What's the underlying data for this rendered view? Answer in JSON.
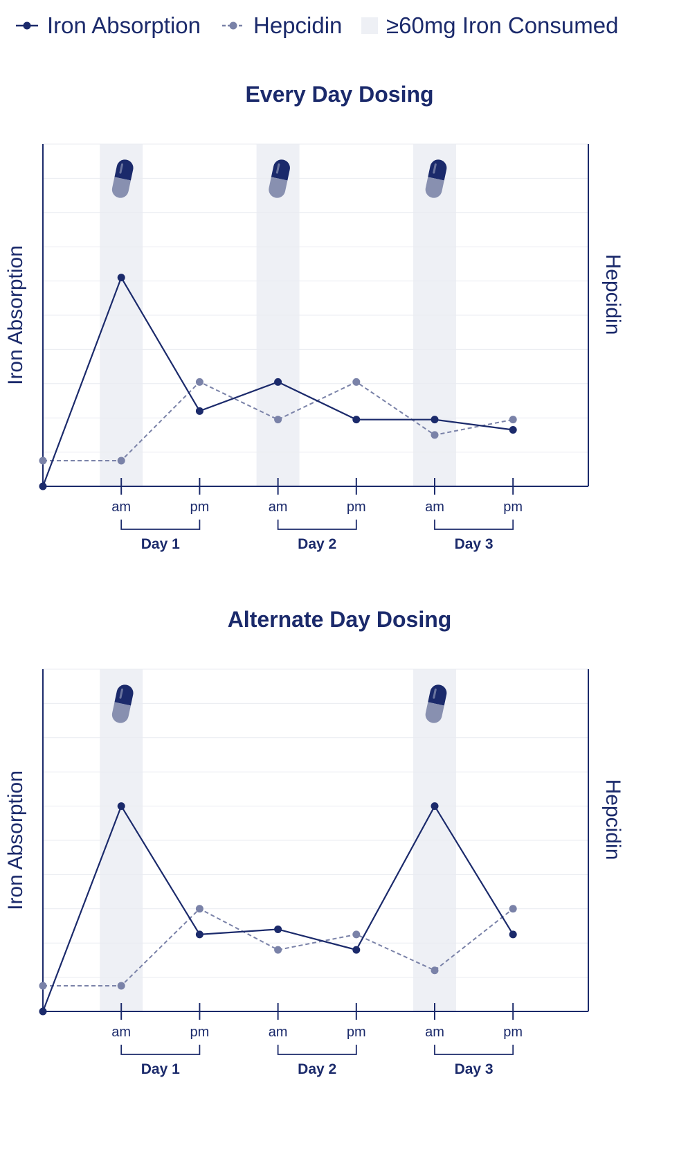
{
  "legend": {
    "iron_label": "Iron Absorption",
    "hepcidin_label": "Hepcidin",
    "shade_label": "≥60mg Iron Consumed"
  },
  "colors": {
    "iron": "#1b2a6b",
    "hepcidin": "#7a82a8",
    "shade": "#eef0f5",
    "grid": "#e9ebf1",
    "axis": "#1b2a6b",
    "pill_top": "#1b2a6b",
    "pill_bottom": "#8890b0"
  },
  "icons": {
    "legend_iron": "line-dot-icon",
    "legend_hepcidin": "dashed-line-dot-icon",
    "legend_shade": "shaded-square-icon",
    "dose": "capsule-pill-icon"
  },
  "chart_data": [
    {
      "type": "line",
      "title": "Every Day Dosing",
      "ylabel_left": "Iron Absorption",
      "ylabel_right": "Hepcidin",
      "ylim": [
        0,
        10
      ],
      "grid": true,
      "x": [
        0,
        1,
        2,
        3,
        4,
        5,
        6
      ],
      "xticks": [
        {
          "x": 1,
          "label": "am"
        },
        {
          "x": 2,
          "label": "pm"
        },
        {
          "x": 3,
          "label": "am"
        },
        {
          "x": 4,
          "label": "pm"
        },
        {
          "x": 5,
          "label": "am"
        },
        {
          "x": 6,
          "label": "pm"
        }
      ],
      "days": [
        {
          "label": "Day 1",
          "from": 1,
          "to": 2
        },
        {
          "label": "Day 2",
          "from": 3,
          "to": 4
        },
        {
          "label": "Day 3",
          "from": 5,
          "to": 6
        }
      ],
      "dose_times": [
        1,
        3,
        5
      ],
      "series": [
        {
          "name": "Iron Absorption",
          "values": [
            0,
            6.1,
            2.2,
            3.05,
            1.95,
            1.95,
            1.65
          ]
        },
        {
          "name": "Hepcidin",
          "values": [
            0.75,
            0.75,
            3.05,
            1.95,
            3.05,
            1.5,
            1.95
          ]
        }
      ]
    },
    {
      "type": "line",
      "title": "Alternate Day Dosing",
      "ylabel_left": "Iron Absorption",
      "ylabel_right": "Hepcidin",
      "ylim": [
        0,
        10
      ],
      "grid": true,
      "x": [
        0,
        1,
        2,
        3,
        4,
        5,
        6
      ],
      "xticks": [
        {
          "x": 1,
          "label": "am"
        },
        {
          "x": 2,
          "label": "pm"
        },
        {
          "x": 3,
          "label": "am"
        },
        {
          "x": 4,
          "label": "pm"
        },
        {
          "x": 5,
          "label": "am"
        },
        {
          "x": 6,
          "label": "pm"
        }
      ],
      "days": [
        {
          "label": "Day 1",
          "from": 1,
          "to": 2
        },
        {
          "label": "Day 2",
          "from": 3,
          "to": 4
        },
        {
          "label": "Day 3",
          "from": 5,
          "to": 6
        }
      ],
      "dose_times": [
        1,
        5
      ],
      "series": [
        {
          "name": "Iron Absorption",
          "values": [
            0,
            6.0,
            2.25,
            2.4,
            1.8,
            6.0,
            2.25
          ]
        },
        {
          "name": "Hepcidin",
          "values": [
            0.75,
            0.75,
            3.0,
            1.8,
            2.25,
            1.2,
            3.0
          ]
        }
      ]
    }
  ]
}
